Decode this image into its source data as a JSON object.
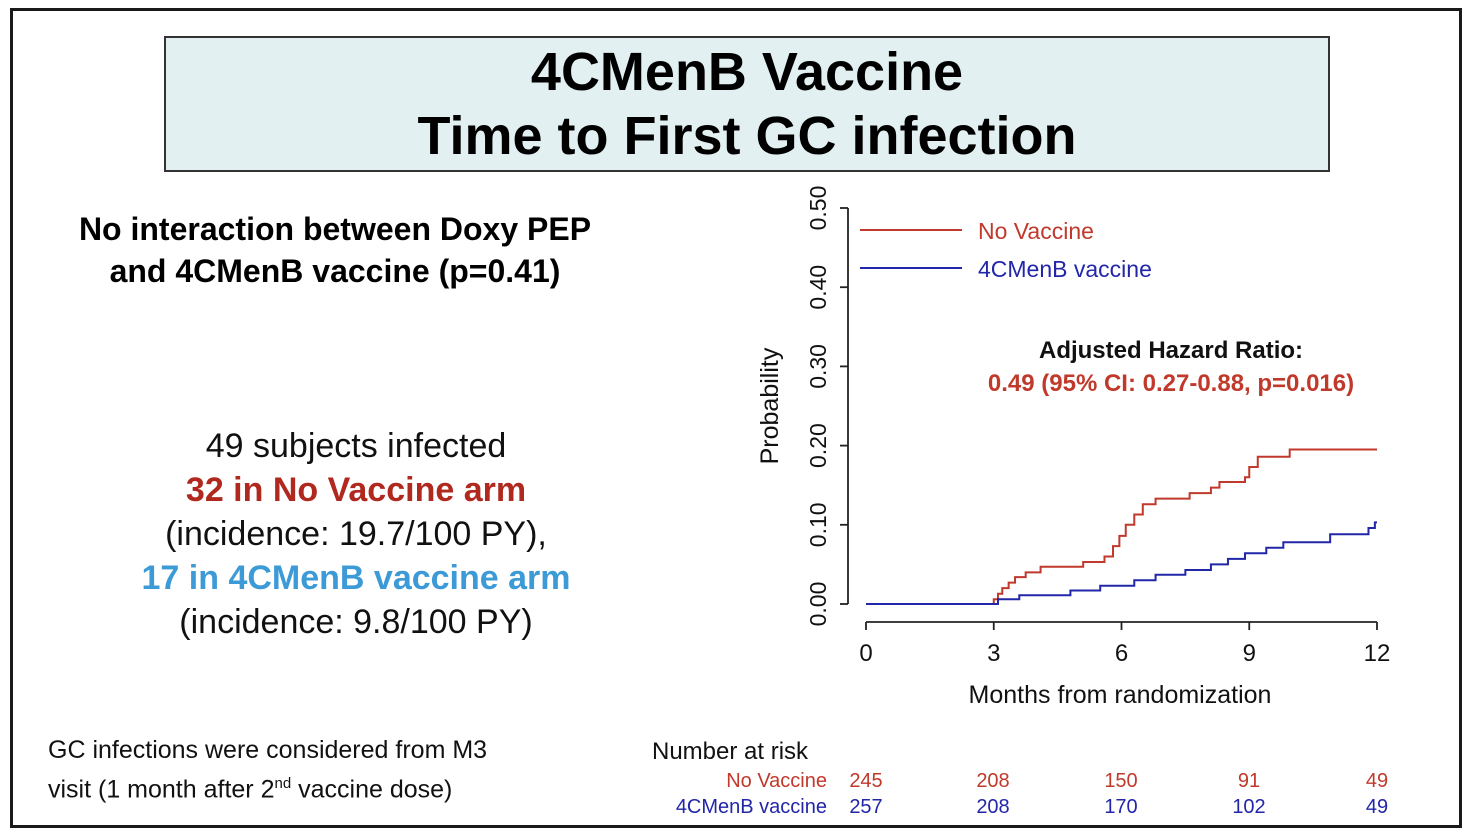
{
  "title": {
    "line1": "4CMenB Vaccine",
    "line2": "Time to First GC infection"
  },
  "interaction_note": {
    "line1": "No interaction between Doxy PEP",
    "line2": "and 4CMenB vaccine (p=0.41)"
  },
  "infection_summary": {
    "total": "49 subjects infected",
    "no_vaccine": "32 in No Vaccine arm",
    "no_vaccine_incidence": "(incidence: 19.7/100 PY),",
    "vaccine": "17 in 4CMenB vaccine arm",
    "vaccine_incidence": "(incidence: 9.8/100 PY)"
  },
  "footnote": {
    "line1": "GC infections were considered from M3",
    "line2_prefix": "visit (1 month after 2",
    "line2_sup": "nd",
    "line2_suffix": " vaccine dose)"
  },
  "colors": {
    "title_bg": "#e2f0f1",
    "no_vaccine": "#c0392b",
    "vaccine": "#2226a8",
    "vaccine_text": "#3c9ad6"
  },
  "chart_data": {
    "type": "line",
    "step": true,
    "xlabel": "Months from randomization",
    "ylabel": "Probability",
    "xlim": [
      0,
      12
    ],
    "ylim": [
      0,
      0.5
    ],
    "x_ticks": [
      "0",
      "3",
      "6",
      "9",
      "12"
    ],
    "y_ticks": [
      "0.00",
      "0.10",
      "0.20",
      "0.30",
      "0.40",
      "0.50"
    ],
    "legend_placement": "top-left",
    "series": [
      {
        "name": "No Vaccine",
        "color": "#c0392b",
        "points": [
          [
            0,
            0
          ],
          [
            3.0,
            0.006
          ],
          [
            3.1,
            0.013
          ],
          [
            3.2,
            0.02
          ],
          [
            3.35,
            0.027
          ],
          [
            3.5,
            0.034
          ],
          [
            3.75,
            0.04
          ],
          [
            4.1,
            0.047
          ],
          [
            5.1,
            0.053
          ],
          [
            5.6,
            0.06
          ],
          [
            5.8,
            0.073
          ],
          [
            5.95,
            0.086
          ],
          [
            6.1,
            0.1
          ],
          [
            6.3,
            0.113
          ],
          [
            6.5,
            0.126
          ],
          [
            6.8,
            0.133
          ],
          [
            7.6,
            0.14
          ],
          [
            8.1,
            0.147
          ],
          [
            8.3,
            0.154
          ],
          [
            8.9,
            0.16
          ],
          [
            9.0,
            0.173
          ],
          [
            9.2,
            0.186
          ],
          [
            9.95,
            0.195
          ],
          [
            12.0,
            0.195
          ]
        ]
      },
      {
        "name": "4CMenB vaccine",
        "color": "#2226a8",
        "points": [
          [
            0,
            0
          ],
          [
            3.1,
            0.006
          ],
          [
            3.6,
            0.011
          ],
          [
            4.8,
            0.017
          ],
          [
            5.5,
            0.023
          ],
          [
            6.3,
            0.03
          ],
          [
            6.8,
            0.037
          ],
          [
            7.5,
            0.043
          ],
          [
            8.1,
            0.05
          ],
          [
            8.5,
            0.057
          ],
          [
            8.9,
            0.064
          ],
          [
            9.4,
            0.071
          ],
          [
            9.8,
            0.078
          ],
          [
            10.9,
            0.088
          ],
          [
            11.8,
            0.096
          ],
          [
            11.95,
            0.103
          ],
          [
            12.0,
            0.103
          ]
        ]
      }
    ],
    "annotation": {
      "title": "Adjusted Hazard Ratio:",
      "value": "0.49 (95% CI: 0.27-0.88, p=0.016)"
    },
    "risk_table": {
      "title": "Number at risk",
      "rows": [
        {
          "name": "No Vaccine",
          "values": [
            "245",
            "208",
            "150",
            "91",
            "49"
          ]
        },
        {
          "name": "4CMenB vaccine",
          "values": [
            "257",
            "208",
            "170",
            "102",
            "49"
          ]
        }
      ]
    }
  }
}
